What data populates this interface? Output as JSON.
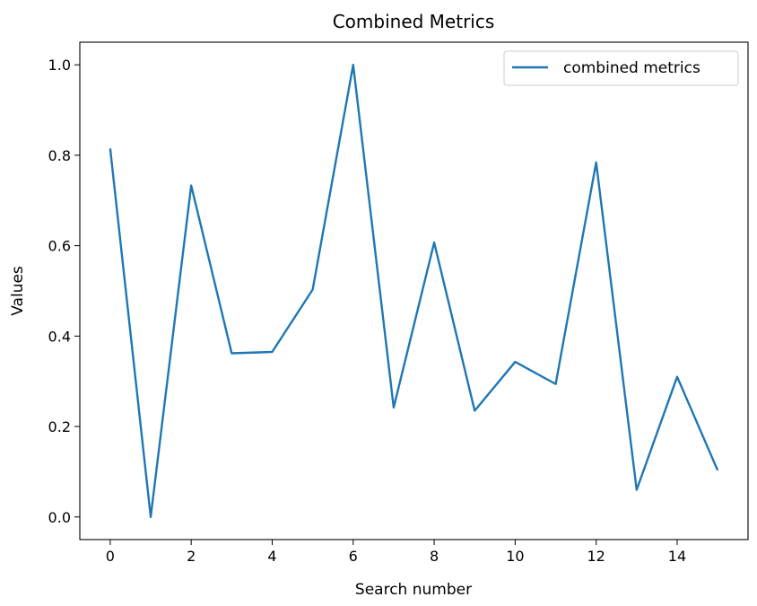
{
  "chart_data": {
    "type": "line",
    "title": "Combined Metrics",
    "xlabel": "Search number",
    "ylabel": "Values",
    "x": [
      0,
      1,
      2,
      3,
      4,
      5,
      6,
      7,
      8,
      9,
      10,
      11,
      12,
      13,
      14,
      15
    ],
    "series": [
      {
        "name": "combined metrics",
        "color": "#1f77b4",
        "values": [
          0.815,
          0.0,
          0.733,
          0.362,
          0.365,
          0.503,
          1.0,
          0.242,
          0.607,
          0.235,
          0.343,
          0.294,
          0.784,
          0.06,
          0.31,
          0.103
        ]
      }
    ],
    "xlim": [
      -0.75,
      15.75
    ],
    "ylim": [
      -0.05,
      1.05
    ],
    "xticks": [
      "0",
      "2",
      "4",
      "6",
      "8",
      "10",
      "12",
      "14"
    ],
    "yticks": [
      "0.0",
      "0.2",
      "0.4",
      "0.6",
      "0.8",
      "1.0"
    ],
    "grid": false,
    "legend_position": "top-right"
  }
}
